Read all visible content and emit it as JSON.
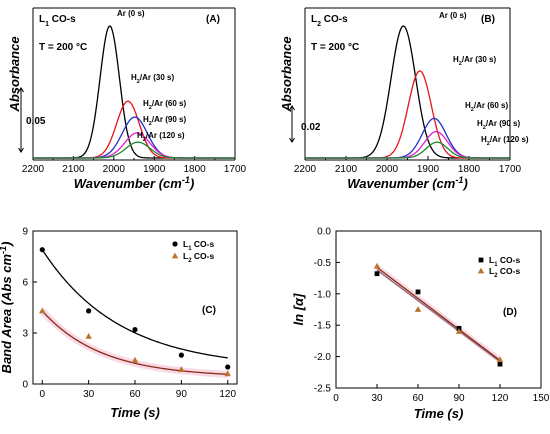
{
  "chart_data": [
    {
      "panel": "(A)",
      "type": "line",
      "header_main": "L",
      "header_sub": "1",
      "header_rest": " CO-s",
      "temperature": "T = 200 °C",
      "xlabel": "Wavenumber (cm⁻¹)",
      "ylabel": "Absorbance",
      "xlim": [
        2200,
        1700
      ],
      "x_ticks": [
        2200,
        2100,
        2000,
        1900,
        1800,
        1700
      ],
      "scale_bar_label": "0.05",
      "series": [
        {
          "name": "Ar (0 s)",
          "color": "#000000",
          "peak_x": 2010,
          "peak_height": 1.0,
          "width": 24
        },
        {
          "name": "H₂/Ar (30 s)",
          "color": "#e8141b",
          "peak_x": 1965,
          "peak_height": 0.43,
          "width": 28
        },
        {
          "name": "H₂/Ar (60 s)",
          "color": "#2230c8",
          "peak_x": 1948,
          "peak_height": 0.31,
          "width": 31
        },
        {
          "name": "H₂/Ar (90 s)",
          "color": "#e020d0",
          "peak_x": 1942,
          "peak_height": 0.19,
          "width": 31
        },
        {
          "name": "H₂/Ar (120 s)",
          "color": "#1a8a2a",
          "peak_x": 1940,
          "peak_height": 0.12,
          "width": 30
        }
      ]
    },
    {
      "panel": "(B)",
      "type": "line",
      "header_main": "L",
      "header_sub": "2",
      "header_rest": " CO-s",
      "temperature": "T = 200 °C",
      "xlabel": "Wavenumber (cm⁻¹)",
      "ylabel": "Absorbance",
      "xlim": [
        2200,
        1700
      ],
      "x_ticks": [
        2200,
        2100,
        2000,
        1900,
        1800,
        1700
      ],
      "scale_bar_label": "0.02",
      "series": [
        {
          "name": "Ar (0 s)",
          "color": "#000000",
          "peak_x": 1960,
          "peak_height": 1.0,
          "width": 30
        },
        {
          "name": "H₂/Ar (30 s)",
          "color": "#e8141b",
          "peak_x": 1920,
          "peak_height": 0.66,
          "width": 28
        },
        {
          "name": "H₂/Ar (60 s)",
          "color": "#2230c8",
          "peak_x": 1885,
          "peak_height": 0.3,
          "width": 29
        },
        {
          "name": "H₂/Ar (90 s)",
          "color": "#e020d0",
          "peak_x": 1880,
          "peak_height": 0.2,
          "width": 28
        },
        {
          "name": "H₂/Ar (120 s)",
          "color": "#1a8a2a",
          "peak_x": 1878,
          "peak_height": 0.12,
          "width": 26
        }
      ]
    },
    {
      "panel": "(C)",
      "type": "scatter",
      "xlabel": "Time (s)",
      "ylabel": "Band Area (Abs cm⁻¹)",
      "xlim": [
        -6,
        126
      ],
      "ylim": [
        0,
        9
      ],
      "x_ticks": [
        0,
        30,
        60,
        90,
        120
      ],
      "y_ticks": [
        0,
        3,
        6,
        9
      ],
      "series": [
        {
          "name": "L₁ CO-s",
          "marker": "circle",
          "color": "#000000",
          "x": [
            0,
            30,
            60,
            90,
            120
          ],
          "y": [
            7.9,
            4.3,
            3.2,
            1.7,
            1.0
          ],
          "fit": {
            "a": 7.0,
            "k": 0.02,
            "c": 0.9
          }
        },
        {
          "name": "L₂ CO-s",
          "marker": "triangle",
          "color": "#b8742a",
          "x": [
            0,
            30,
            60,
            90,
            120
          ],
          "y": [
            4.3,
            2.8,
            1.4,
            0.85,
            0.6
          ],
          "fit": {
            "a": 3.9,
            "k": 0.026,
            "c": 0.4
          }
        }
      ]
    },
    {
      "panel": "(D)",
      "type": "scatter",
      "xlabel": "Time (s)",
      "ylabel": "ln [α]",
      "xlim": [
        0,
        150
      ],
      "ylim": [
        -2.5,
        0
      ],
      "x_ticks": [
        0,
        30,
        60,
        90,
        120,
        150
      ],
      "y_ticks": [
        0.0,
        -0.5,
        -1.0,
        -1.5,
        -2.0,
        -2.5
      ],
      "series": [
        {
          "name": "L₁ CO-s",
          "marker": "square",
          "color": "#000000",
          "x": [
            30,
            60,
            90,
            120
          ],
          "y": [
            -0.68,
            -0.97,
            -1.55,
            -2.12
          ],
          "fit": [
            [
              30,
              -0.62
            ],
            [
              120,
              -2.08
            ]
          ]
        },
        {
          "name": "L₂ CO-s",
          "marker": "triangle",
          "color": "#b8742a",
          "x": [
            30,
            60,
            90,
            120
          ],
          "y": [
            -0.56,
            -1.25,
            -1.6,
            -2.05
          ],
          "fit": [
            [
              30,
              -0.58
            ],
            [
              120,
              -2.06
            ]
          ]
        }
      ]
    }
  ]
}
